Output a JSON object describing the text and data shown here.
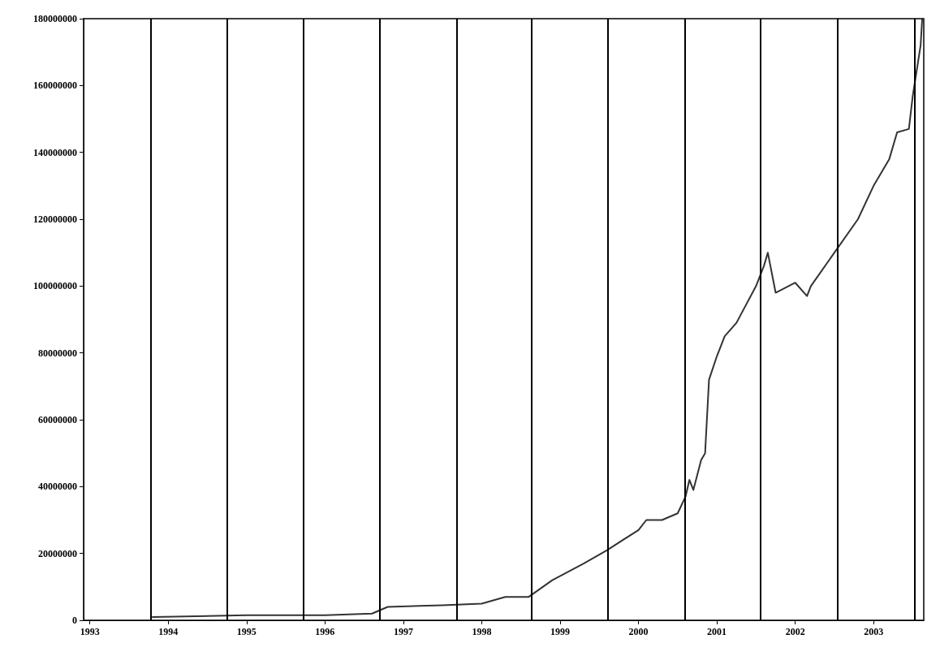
{
  "chart_data": {
    "type": "line",
    "x": [
      1993.8,
      1995,
      1996,
      1996.6,
      1996.8,
      1997.5,
      1998,
      1998.3,
      1998.6,
      1998.9,
      1999.3,
      1999.6,
      2000,
      2000.1,
      2000.3,
      2000.5,
      2000.6,
      2000.65,
      2000.7,
      2000.8,
      2000.85,
      2000.9,
      2001,
      2001.1,
      2001.25,
      2001.5,
      2001.6,
      2001.65,
      2001.75,
      2002,
      2002.15,
      2002.2,
      2002.5,
      2002.8,
      2003,
      2003.2,
      2003.3,
      2003.45,
      2003.5,
      2003.6,
      2003.62
    ],
    "series": [
      {
        "color": "#333333",
        "values": [
          1000000,
          1500000,
          1500000,
          2000000,
          4000000,
          4500000,
          5000000,
          7000000,
          7000000,
          12000000,
          17000000,
          21000000,
          27000000,
          30000000,
          30000000,
          32000000,
          37000000,
          42000000,
          39000000,
          48000000,
          50000000,
          72000000,
          79000000,
          85000000,
          89000000,
          100000000,
          106000000,
          110000000,
          98000000,
          101000000,
          97000000,
          100000000,
          110000000,
          120000000,
          130000000,
          138000000,
          146000000,
          147000000,
          157000000,
          172000000,
          180000000
        ]
      }
    ],
    "xlim": [
      1992.92,
      2003.64
    ],
    "xticks": [
      1993,
      1994,
      1995,
      1996,
      1997,
      1998,
      1999,
      2000,
      2001,
      2002,
      2003
    ],
    "ylim": [
      0,
      180000000
    ],
    "yticks": [
      0,
      20000000,
      40000000,
      60000000,
      80000000,
      100000000,
      120000000,
      140000000,
      160000000,
      180000000
    ],
    "ref_lines": [
      {
        "axis": "x",
        "value": 1993.78,
        "color": "#000000"
      },
      {
        "axis": "x",
        "value": 1994.75,
        "color": "#000000"
      },
      {
        "axis": "x",
        "value": 1995.72,
        "color": "#000000"
      },
      {
        "axis": "x",
        "value": 1996.7,
        "color": "#000000"
      },
      {
        "axis": "x",
        "value": 1997.68,
        "color": "#000000"
      },
      {
        "axis": "x",
        "value": 1998.63,
        "color": "#000000"
      },
      {
        "axis": "x",
        "value": 1999.61,
        "color": "#000000"
      },
      {
        "axis": "x",
        "value": 2000.59,
        "color": "#000000"
      },
      {
        "axis": "x",
        "value": 2001.56,
        "color": "#000000"
      },
      {
        "axis": "x",
        "value": 2002.54,
        "color": "#000000"
      },
      {
        "axis": "x",
        "value": 2003.52,
        "color": "#000000"
      }
    ],
    "grid": false,
    "marker": "none",
    "line_style": "solid"
  }
}
